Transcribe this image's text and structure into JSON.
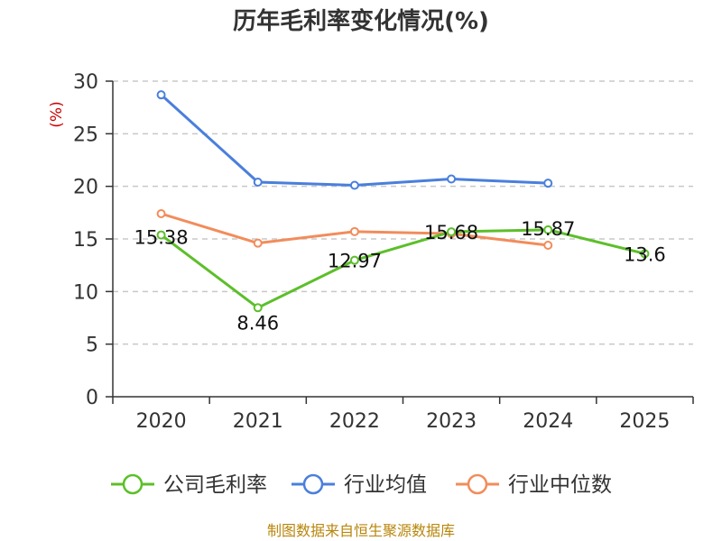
{
  "chart_data": {
    "type": "line",
    "title": "历年毛利率变化情况(%)",
    "ylabel": "(%)",
    "xlabel": "",
    "categories": [
      "2020",
      "2021",
      "2022",
      "2023",
      "2024",
      "2025"
    ],
    "ylim": [
      0,
      30
    ],
    "yticks": [
      0,
      5,
      10,
      15,
      20,
      25,
      30
    ],
    "grid": true,
    "legend_position": "bottom",
    "series": [
      {
        "name": "公司毛利率",
        "color": "#5cbf2a",
        "values": [
          15.38,
          8.46,
          12.97,
          15.68,
          15.87,
          13.6
        ],
        "labels": [
          "15.38",
          "8.46",
          "12.97",
          "15.68",
          "15.87",
          "13.6"
        ]
      },
      {
        "name": "行业均值",
        "color": "#4a7fdc",
        "values": [
          28.7,
          20.4,
          20.1,
          20.7,
          20.3,
          null
        ]
      },
      {
        "name": "行业中位数",
        "color": "#f28c5b",
        "values": [
          17.4,
          14.6,
          15.7,
          15.5,
          14.4,
          null
        ]
      }
    ],
    "source": "制图数据来自恒生聚源数据库"
  }
}
